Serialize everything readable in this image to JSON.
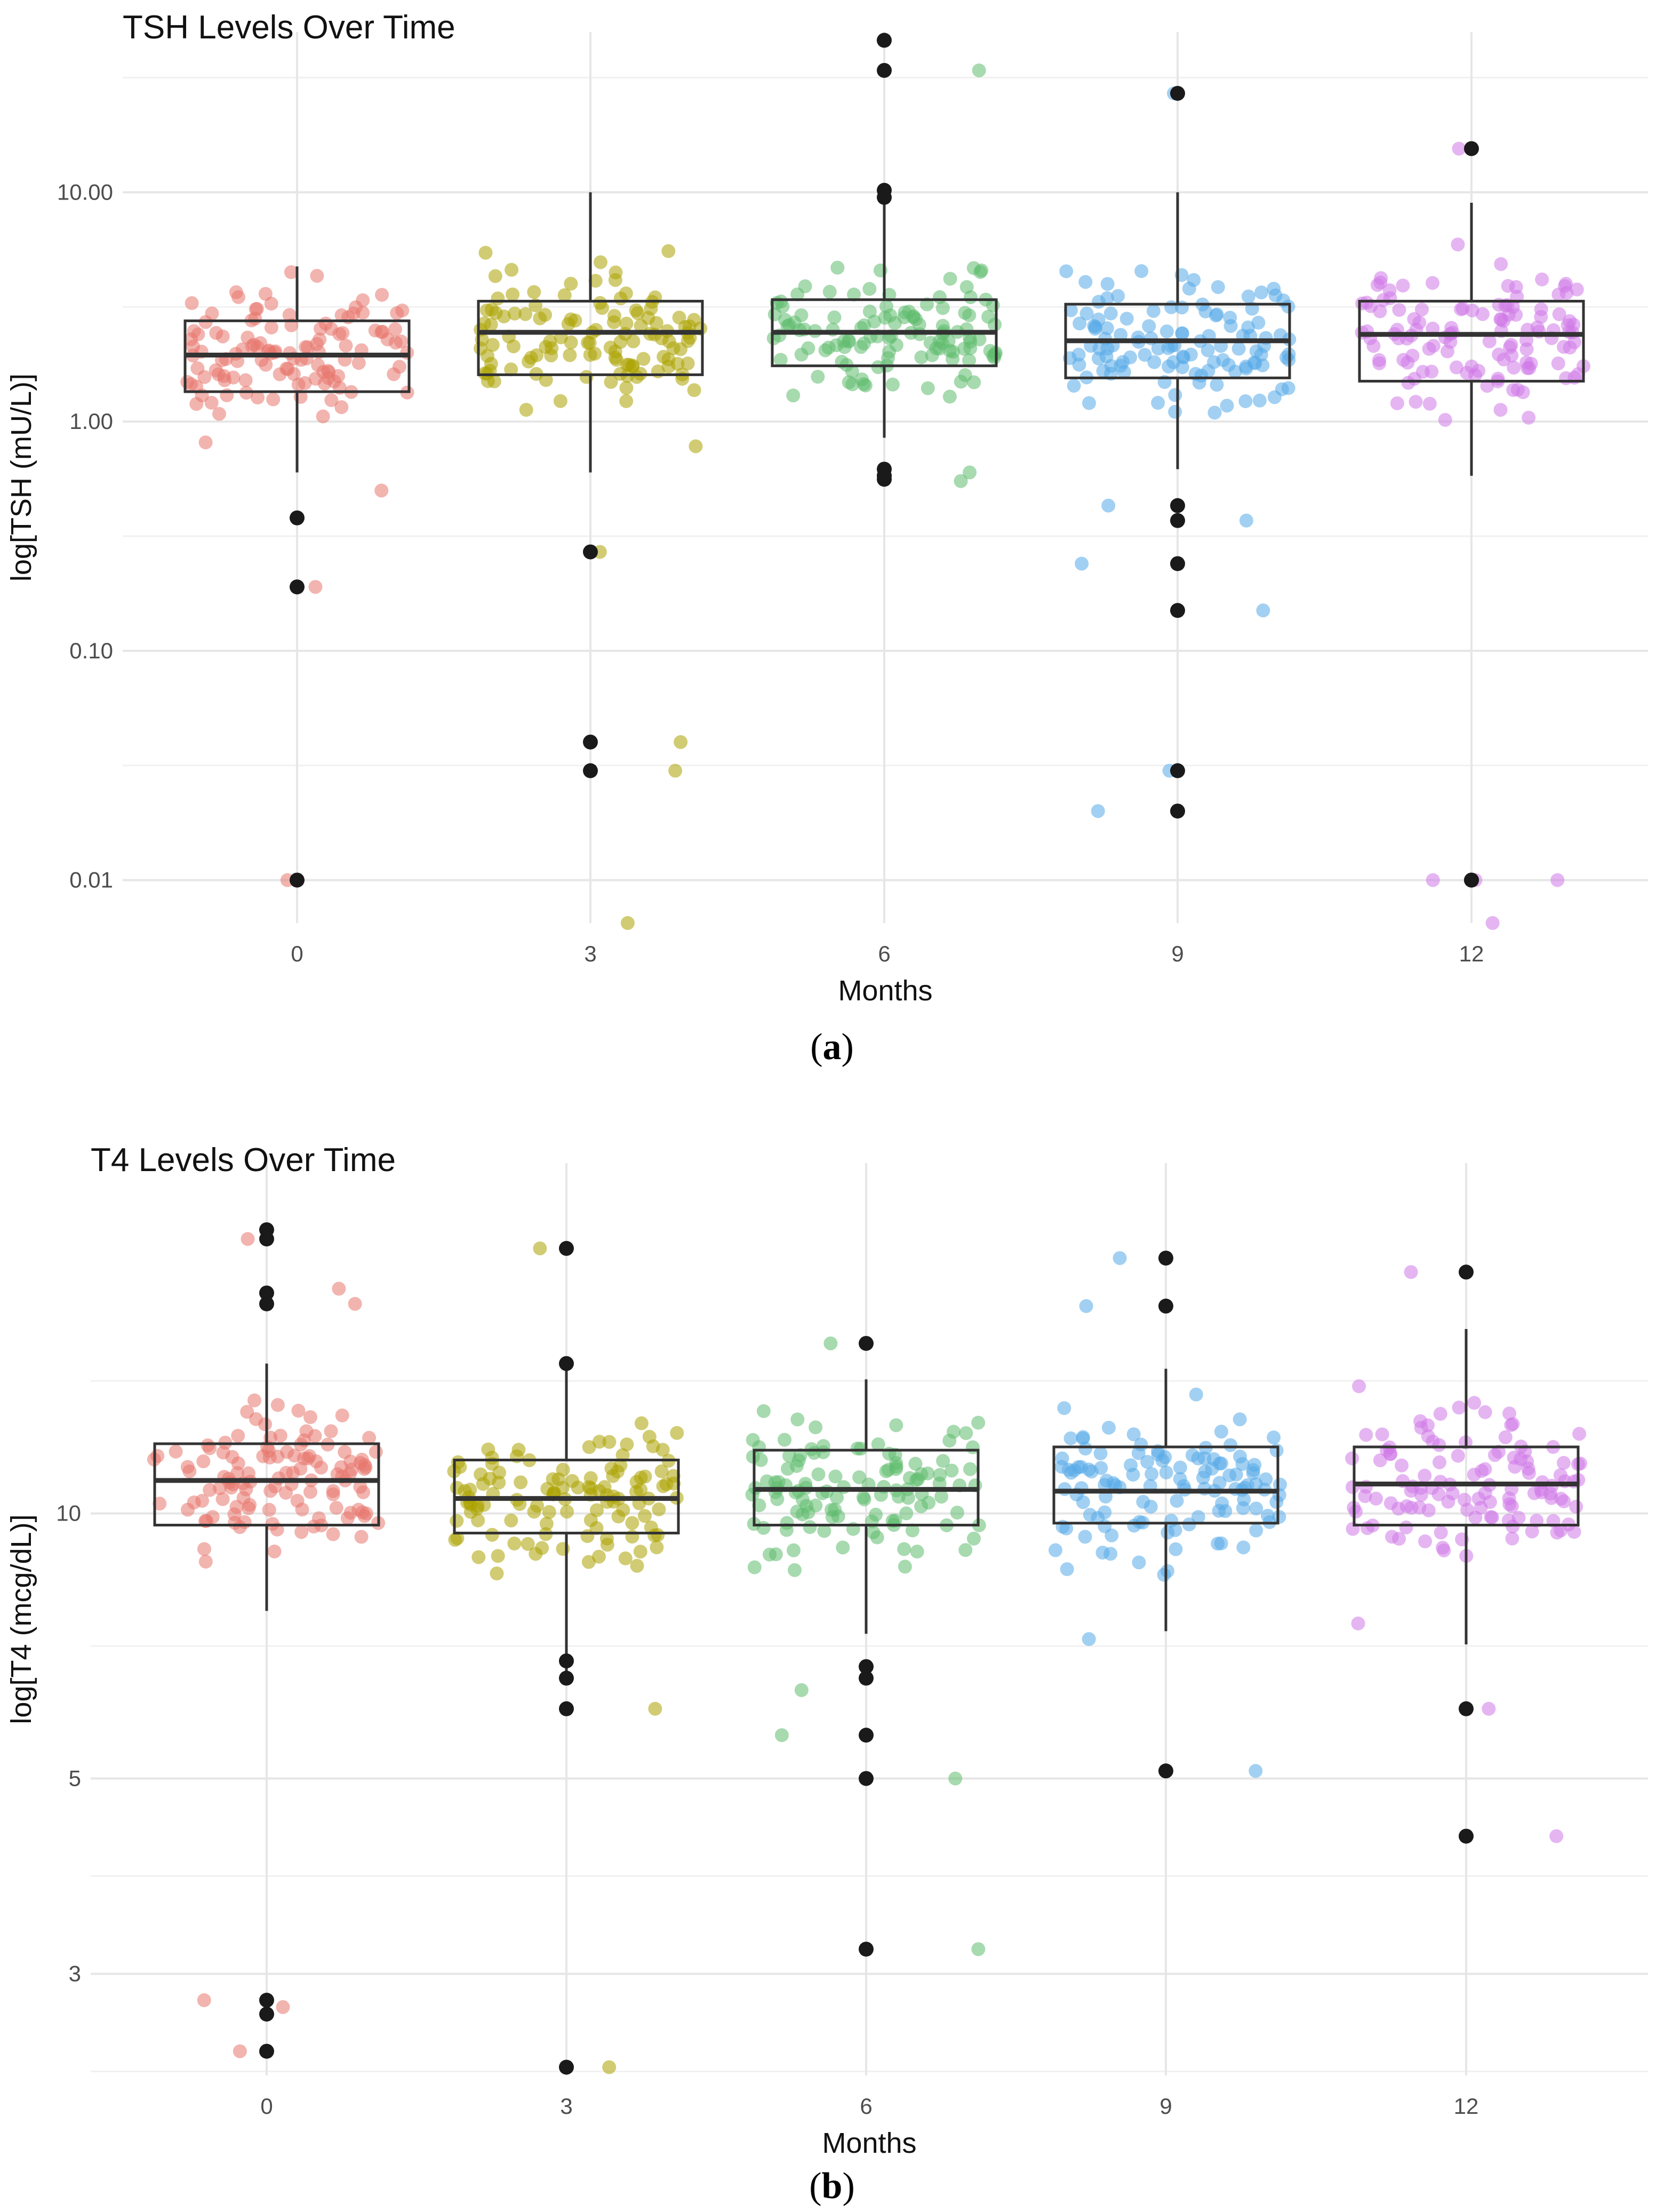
{
  "chart_data": [
    {
      "type": "box",
      "panel_label": "a",
      "title": "TSH Levels Over Time",
      "xlabel": "Months",
      "ylabel": "log[TSH (mU/L)]",
      "y_scale": "log10",
      "ylim": [
        0.0065,
        50
      ],
      "yticks": [
        0.01,
        0.1,
        1.0,
        10.0
      ],
      "ytick_labels": [
        "0.01",
        "0.10",
        "1.00",
        "10.00"
      ],
      "categories": [
        "0",
        "3",
        "6",
        "9",
        "12"
      ],
      "grid": true,
      "legend": "none",
      "series": [
        {
          "category": "0",
          "color": "#E8766D",
          "q1": 1.35,
          "median": 1.95,
          "q3": 2.75,
          "whisker_low": 0.6,
          "whisker_high": 4.75,
          "n_points": 120,
          "seed": 11,
          "outliers": [
            0.38,
            0.19,
            0.01
          ],
          "jitter_extremes": [
            0.19,
            0.01,
            0.5
          ]
        },
        {
          "category": "3",
          "color": "#ABA300",
          "q1": 1.6,
          "median": 2.45,
          "q3": 3.35,
          "whisker_low": 0.6,
          "whisker_high": 10.0,
          "n_points": 120,
          "seed": 23,
          "outliers": [
            0.27,
            0.04,
            0.03
          ],
          "jitter_extremes": [
            0.27,
            0.04,
            0.03,
            0.0065,
            0.78
          ]
        },
        {
          "category": "6",
          "color": "#5FBB6E",
          "q1": 1.75,
          "median": 2.45,
          "q3": 3.4,
          "whisker_low": 0.85,
          "whisker_high": 10.5,
          "n_points": 120,
          "seed": 37,
          "outliers": [
            46.0,
            34.0,
            9.5,
            10.2,
            0.62,
            0.58,
            0.56
          ],
          "jitter_extremes": [
            46.0,
            34.0,
            0.6,
            0.55
          ]
        },
        {
          "category": "9",
          "color": "#56A9E8",
          "q1": 1.55,
          "median": 2.25,
          "q3": 3.25,
          "whisker_low": 0.62,
          "whisker_high": 10.0,
          "n_points": 120,
          "seed": 41,
          "outliers": [
            27.0,
            0.43,
            0.37,
            0.24,
            0.15,
            0.03,
            0.02
          ],
          "jitter_extremes": [
            27.0,
            0.24,
            0.15,
            0.03,
            0.02,
            0.37,
            0.43
          ]
        },
        {
          "category": "12",
          "color": "#CF78E8",
          "q1": 1.5,
          "median": 2.4,
          "q3": 3.35,
          "whisker_low": 0.58,
          "whisker_high": 9.0,
          "n_points": 120,
          "seed": 53,
          "outliers": [
            15.5,
            0.01,
            0.01
          ],
          "jitter_extremes": [
            15.5,
            0.01,
            0.01,
            0.01,
            0.0065
          ]
        }
      ]
    },
    {
      "type": "box",
      "panel_label": "b",
      "title": "T4 Levels Over Time",
      "xlabel": "Months",
      "ylabel": "log[T4 (mcg/dL)]",
      "y_scale": "log10",
      "ylim": [
        2.3,
        25
      ],
      "yticks": [
        3,
        5,
        10
      ],
      "ytick_labels": [
        "3",
        "5",
        "10"
      ],
      "categories": [
        "0",
        "3",
        "6",
        "9",
        "12"
      ],
      "grid": true,
      "legend": "none",
      "series": [
        {
          "category": "0",
          "color": "#E8766D",
          "q1": 9.7,
          "median": 10.9,
          "q3": 12.0,
          "whisker_low": 7.75,
          "whisker_high": 14.8,
          "n_points": 120,
          "seed": 61,
          "outliers": [
            21.0,
            20.5,
            17.8,
            17.3,
            2.8,
            2.7,
            2.45
          ],
          "jitter_extremes": [
            20.5,
            18.0,
            17.3,
            2.75,
            2.8,
            2.45
          ]
        },
        {
          "category": "3",
          "color": "#ABA300",
          "q1": 9.5,
          "median": 10.4,
          "q3": 11.5,
          "whisker_low": 6.5,
          "whisker_high": 14.8,
          "n_points": 120,
          "seed": 71,
          "outliers": [
            20.0,
            14.8,
            6.8,
            6.5,
            6.0,
            2.35
          ],
          "jitter_extremes": [
            20.0,
            2.35,
            6.0
          ]
        },
        {
          "category": "6",
          "color": "#5FBB6E",
          "q1": 9.7,
          "median": 10.65,
          "q3": 11.8,
          "whisker_low": 7.3,
          "whisker_high": 14.2,
          "n_points": 120,
          "seed": 83,
          "outliers": [
            15.6,
            6.7,
            6.5,
            5.6,
            5.0,
            3.2
          ],
          "jitter_extremes": [
            15.6,
            5.6,
            5.0,
            3.2,
            6.3
          ]
        },
        {
          "category": "9",
          "color": "#56A9E8",
          "q1": 9.75,
          "median": 10.6,
          "q3": 11.9,
          "whisker_low": 7.35,
          "whisker_high": 14.6,
          "n_points": 120,
          "seed": 97,
          "outliers": [
            19.5,
            17.2,
            5.1
          ],
          "jitter_extremes": [
            19.5,
            17.2,
            5.1,
            7.2
          ]
        },
        {
          "category": "12",
          "color": "#CF78E8",
          "q1": 9.7,
          "median": 10.8,
          "q3": 11.9,
          "whisker_low": 7.1,
          "whisker_high": 16.2,
          "n_points": 120,
          "seed": 109,
          "outliers": [
            18.8,
            6.0,
            4.3
          ],
          "jitter_extremes": [
            18.8,
            6.0,
            4.3,
            7.5
          ]
        }
      ]
    }
  ]
}
